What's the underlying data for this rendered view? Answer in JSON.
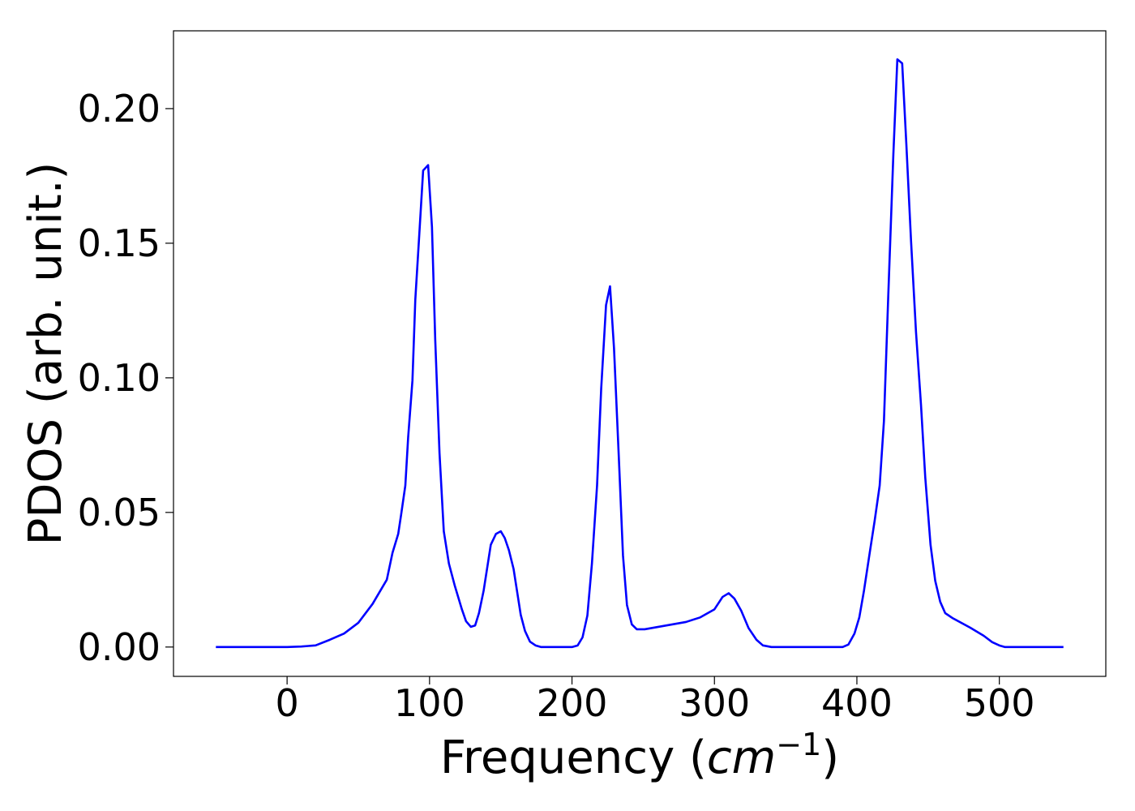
{
  "chart_data": {
    "type": "line",
    "y_label": "PDOS (arb. unit.)",
    "x_label": [
      "Frequency (",
      "cm",
      "−1",
      ")"
    ],
    "xlim": [
      -79.75,
      574.75
    ],
    "xticks": [
      0,
      100,
      200,
      300,
      400,
      500
    ],
    "ylim": [
      -0.0109,
      0.2289
    ],
    "yticks": [
      {
        "value": 0,
        "label": "0.00"
      },
      {
        "value": 0.05,
        "label": "0.05"
      },
      {
        "value": 0.1,
        "label": "0.10"
      },
      {
        "value": 0.15,
        "label": "0.15"
      },
      {
        "value": 0.2,
        "label": "0.20"
      }
    ],
    "grid": false,
    "series": [
      {
        "name": "PDOS",
        "color": "#0000ff",
        "x": [
          -50,
          0,
          10,
          20,
          30,
          40,
          50,
          60,
          70,
          74,
          78,
          80,
          83,
          85,
          88,
          90,
          93,
          95.5,
          99,
          101.7,
          104,
          107,
          110,
          113.6,
          117.6,
          122.7,
          125.6,
          129,
          132,
          134.7,
          138,
          143,
          146.6,
          150,
          152.8,
          155.7,
          159,
          164,
          167,
          170.5,
          174.4,
          178.4,
          200,
          204,
          207.4,
          210.8,
          214,
          217.6,
          220.5,
          223.9,
          226.7,
          229.5,
          233,
          235.8,
          238.6,
          242,
          245.5,
          251,
          280,
          290,
          300,
          305.7,
          310,
          314,
          318.8,
          324,
          329.5,
          334,
          340,
          390,
          394,
          398.3,
          401.7,
          405,
          409,
          412.5,
          416,
          419,
          422,
          425.6,
          428.4,
          431.8,
          434.7,
          438,
          441.5,
          445,
          448,
          451.7,
          455,
          458.5,
          462,
          467,
          479.5,
          489,
          495,
          500,
          504,
          545
        ],
        "values": [
          0,
          0,
          0.0002,
          0.0006,
          0.0027,
          0.005,
          0.009,
          0.016,
          0.025,
          0.035,
          0.042,
          0.049,
          0.06,
          0.078,
          0.099,
          0.129,
          0.155,
          0.177,
          0.179,
          0.156,
          0.114,
          0.072,
          0.043,
          0.031,
          0.023,
          0.014,
          0.0096,
          0.0075,
          0.008,
          0.0126,
          0.021,
          0.038,
          0.042,
          0.043,
          0.0405,
          0.036,
          0.029,
          0.012,
          0.006,
          0.002,
          0.0006,
          0,
          0,
          0.0006,
          0.0036,
          0.0117,
          0.031,
          0.06,
          0.096,
          0.127,
          0.134,
          0.111,
          0.069,
          0.034,
          0.0156,
          0.0084,
          0.0066,
          0.0066,
          0.0093,
          0.011,
          0.014,
          0.0186,
          0.02,
          0.018,
          0.0135,
          0.007,
          0.0027,
          0.0006,
          0,
          0,
          0.0009,
          0.005,
          0.011,
          0.021,
          0.035,
          0.047,
          0.06,
          0.084,
          0.13,
          0.183,
          0.2183,
          0.2168,
          0.187,
          0.151,
          0.117,
          0.09,
          0.063,
          0.038,
          0.0246,
          0.0168,
          0.0126,
          0.0108,
          0.0072,
          0.0042,
          0.0018,
          0.0006,
          0,
          0
        ]
      }
    ]
  }
}
